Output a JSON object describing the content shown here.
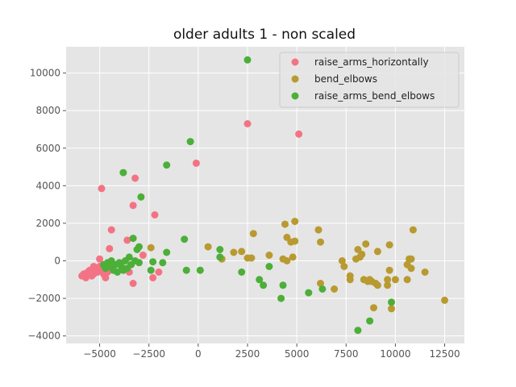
{
  "chart_data": {
    "type": "scatter",
    "title": "older adults 1 - non scaled",
    "xlabel": "",
    "ylabel": "",
    "xlim": [
      -6700,
      13500
    ],
    "ylim": [
      -4400,
      11400
    ],
    "xticks": [
      -5000,
      -2500,
      0,
      2500,
      5000,
      7500,
      10000,
      12500
    ],
    "yticks": [
      -4000,
      -2000,
      0,
      2000,
      4000,
      6000,
      8000,
      10000
    ],
    "grid": true,
    "legend_position": "top-right",
    "series": [
      {
        "name": "raise_arms_horizontally",
        "color": "#f37384",
        "points": [
          [
            -5900,
            -800
          ],
          [
            -5800,
            -700
          ],
          [
            -5700,
            -900
          ],
          [
            -5600,
            -600
          ],
          [
            -5500,
            -500
          ],
          [
            -5400,
            -800
          ],
          [
            -5300,
            -700
          ],
          [
            -5200,
            -400
          ],
          [
            -5100,
            -600
          ],
          [
            -5000,
            -300
          ],
          [
            -4900,
            -500
          ],
          [
            -4800,
            -700
          ],
          [
            -4700,
            -900
          ],
          [
            -4600,
            -600
          ],
          [
            -4500,
            -400
          ],
          [
            -5300,
            -300
          ],
          [
            -5000,
            100
          ],
          [
            -4900,
            3850
          ],
          [
            -4500,
            650
          ],
          [
            -4400,
            1650
          ],
          [
            -3500,
            -600
          ],
          [
            -3600,
            1100
          ],
          [
            -3300,
            2950
          ],
          [
            -3200,
            4400
          ],
          [
            -3300,
            -1200
          ],
          [
            -2800,
            300
          ],
          [
            -2200,
            2450
          ],
          [
            -2300,
            -900
          ],
          [
            -2000,
            -600
          ],
          [
            -100,
            5200
          ],
          [
            2500,
            7300
          ],
          [
            5100,
            6750
          ]
        ]
      },
      {
        "name": "bend_elbows",
        "color": "#b89a30",
        "points": [
          [
            -2400,
            700
          ],
          [
            500,
            750
          ],
          [
            1200,
            100
          ],
          [
            1800,
            450
          ],
          [
            2200,
            500
          ],
          [
            2500,
            150
          ],
          [
            2700,
            150
          ],
          [
            2800,
            1450
          ],
          [
            3600,
            300
          ],
          [
            4300,
            100
          ],
          [
            4400,
            1950
          ],
          [
            4500,
            0
          ],
          [
            4500,
            1250
          ],
          [
            4700,
            1000
          ],
          [
            4800,
            200
          ],
          [
            4900,
            2100
          ],
          [
            4900,
            1050
          ],
          [
            6100,
            1650
          ],
          [
            6200,
            1000
          ],
          [
            6200,
            -1200
          ],
          [
            6900,
            -1500
          ],
          [
            7300,
            0
          ],
          [
            7400,
            -300
          ],
          [
            7700,
            -800
          ],
          [
            7700,
            -1000
          ],
          [
            8000,
            100
          ],
          [
            8100,
            600
          ],
          [
            8200,
            200
          ],
          [
            8300,
            350
          ],
          [
            8400,
            -1000
          ],
          [
            8500,
            900
          ],
          [
            8600,
            -1100
          ],
          [
            8700,
            -1000
          ],
          [
            8800,
            -1100
          ],
          [
            8900,
            -2500
          ],
          [
            9000,
            -1200
          ],
          [
            9100,
            -1300
          ],
          [
            9100,
            500
          ],
          [
            9600,
            -1300
          ],
          [
            9600,
            -1000
          ],
          [
            9700,
            -500
          ],
          [
            9700,
            850
          ],
          [
            9800,
            -2550
          ],
          [
            10000,
            -1000
          ],
          [
            10600,
            -200
          ],
          [
            10600,
            -1000
          ],
          [
            10700,
            100
          ],
          [
            10800,
            100
          ],
          [
            10800,
            -400
          ],
          [
            10900,
            1650
          ],
          [
            11500,
            -600
          ],
          [
            12500,
            -2100
          ]
        ]
      },
      {
        "name": "raise_arms_bend_elbows",
        "color": "#4caf38",
        "points": [
          [
            -4800,
            -200
          ],
          [
            -4700,
            -400
          ],
          [
            -4600,
            -100
          ],
          [
            -4500,
            -300
          ],
          [
            -4400,
            0
          ],
          [
            -4300,
            -500
          ],
          [
            -4200,
            -200
          ],
          [
            -4100,
            -600
          ],
          [
            -4000,
            -100
          ],
          [
            -3900,
            -300
          ],
          [
            -3800,
            -500
          ],
          [
            -3700,
            0
          ],
          [
            -3600,
            -400
          ],
          [
            -3500,
            200
          ],
          [
            -3400,
            -200
          ],
          [
            -3300,
            1200
          ],
          [
            -3200,
            0
          ],
          [
            -3100,
            600
          ],
          [
            -3000,
            -100
          ],
          [
            -3000,
            750
          ],
          [
            -3800,
            4700
          ],
          [
            -2900,
            3400
          ],
          [
            -2400,
            -500
          ],
          [
            -2300,
            -50
          ],
          [
            -1800,
            -100
          ],
          [
            -1600,
            450
          ],
          [
            -1600,
            5100
          ],
          [
            -700,
            1150
          ],
          [
            -600,
            -500
          ],
          [
            -400,
            6350
          ],
          [
            100,
            -500
          ],
          [
            1100,
            200
          ],
          [
            1100,
            600
          ],
          [
            2200,
            -600
          ],
          [
            2500,
            10700
          ],
          [
            3100,
            -1000
          ],
          [
            3300,
            -1300
          ],
          [
            3600,
            -300
          ],
          [
            4200,
            -2000
          ],
          [
            4300,
            -1300
          ],
          [
            5600,
            -1700
          ],
          [
            6300,
            -1500
          ],
          [
            8100,
            -3700
          ],
          [
            8700,
            -3200
          ],
          [
            9800,
            -2200
          ]
        ]
      }
    ]
  }
}
